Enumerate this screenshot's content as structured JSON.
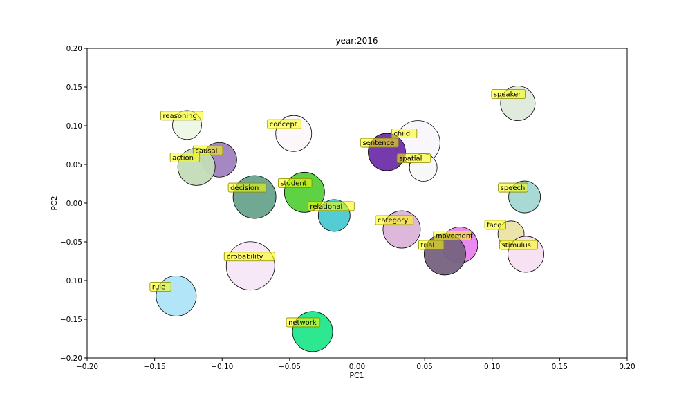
{
  "chart_data": {
    "type": "scatter",
    "title": "year:2016",
    "xlabel": "PC1",
    "ylabel": "PC2",
    "xlim": [
      -0.2,
      0.2
    ],
    "ylim": [
      -0.2,
      0.2
    ],
    "xticks": [
      "−0.20",
      "−0.15",
      "−0.10",
      "−0.05",
      "0.00",
      "0.05",
      "0.10",
      "0.15",
      "0.20"
    ],
    "yticks": [
      "−0.20",
      "−0.15",
      "−0.10",
      "−0.05",
      "0.00",
      "0.05",
      "0.10",
      "0.15",
      "0.20"
    ],
    "grid": false,
    "label_style": {
      "background": "#ffff00",
      "border": "#888800"
    },
    "points": [
      {
        "label": "speaker",
        "x": 0.119,
        "y": 0.129,
        "color": "#dfeadb",
        "size": 25
      },
      {
        "label": "reasoning",
        "x": -0.126,
        "y": 0.101,
        "color": "#eef8e6",
        "size": 21
      },
      {
        "label": "concept",
        "x": -0.047,
        "y": 0.09,
        "color": "#fbf7fb",
        "size": 26
      },
      {
        "label": "child",
        "x": 0.045,
        "y": 0.078,
        "color": "#f9f7fb",
        "size": 32
      },
      {
        "label": "sentence",
        "x": 0.022,
        "y": 0.066,
        "color": "#6e2fa8",
        "size": 27
      },
      {
        "label": "spatial",
        "x": 0.049,
        "y": 0.046,
        "color": "#f8f8f8",
        "size": 20
      },
      {
        "label": "causal",
        "x": -0.102,
        "y": 0.056,
        "color": "#a082c0",
        "size": 25
      },
      {
        "label": "action",
        "x": -0.119,
        "y": 0.047,
        "color": "#c4dcb8",
        "size": 27
      },
      {
        "label": "student",
        "x": -0.039,
        "y": 0.014,
        "color": "#55d03a",
        "size": 29
      },
      {
        "label": "decision",
        "x": -0.076,
        "y": 0.008,
        "color": "#68a38d",
        "size": 31
      },
      {
        "label": "speech",
        "x": 0.124,
        "y": 0.008,
        "color": "#a3d7d2",
        "size": 23
      },
      {
        "label": "relational",
        "x": -0.017,
        "y": -0.016,
        "color": "#4ac9d2",
        "size": 23
      },
      {
        "label": "category",
        "x": 0.033,
        "y": -0.034,
        "color": "#dbb4d9",
        "size": 27
      },
      {
        "label": "face",
        "x": 0.114,
        "y": -0.04,
        "color": "#ece3a8",
        "size": 19
      },
      {
        "label": "movement",
        "x": 0.076,
        "y": -0.054,
        "color": "#e884f0",
        "size": 26
      },
      {
        "label": "trial",
        "x": 0.065,
        "y": -0.066,
        "color": "#766281",
        "size": 30
      },
      {
        "label": "stimulus",
        "x": 0.125,
        "y": -0.066,
        "color": "#f5e0f2",
        "size": 26
      },
      {
        "label": "probability",
        "x": -0.079,
        "y": -0.081,
        "color": "#f5e7f6",
        "size": 35
      },
      {
        "label": "rule",
        "x": -0.134,
        "y": -0.12,
        "color": "#aee4f8",
        "size": 29
      },
      {
        "label": "network",
        "x": -0.033,
        "y": -0.166,
        "color": "#22e78b",
        "size": 29
      }
    ]
  }
}
